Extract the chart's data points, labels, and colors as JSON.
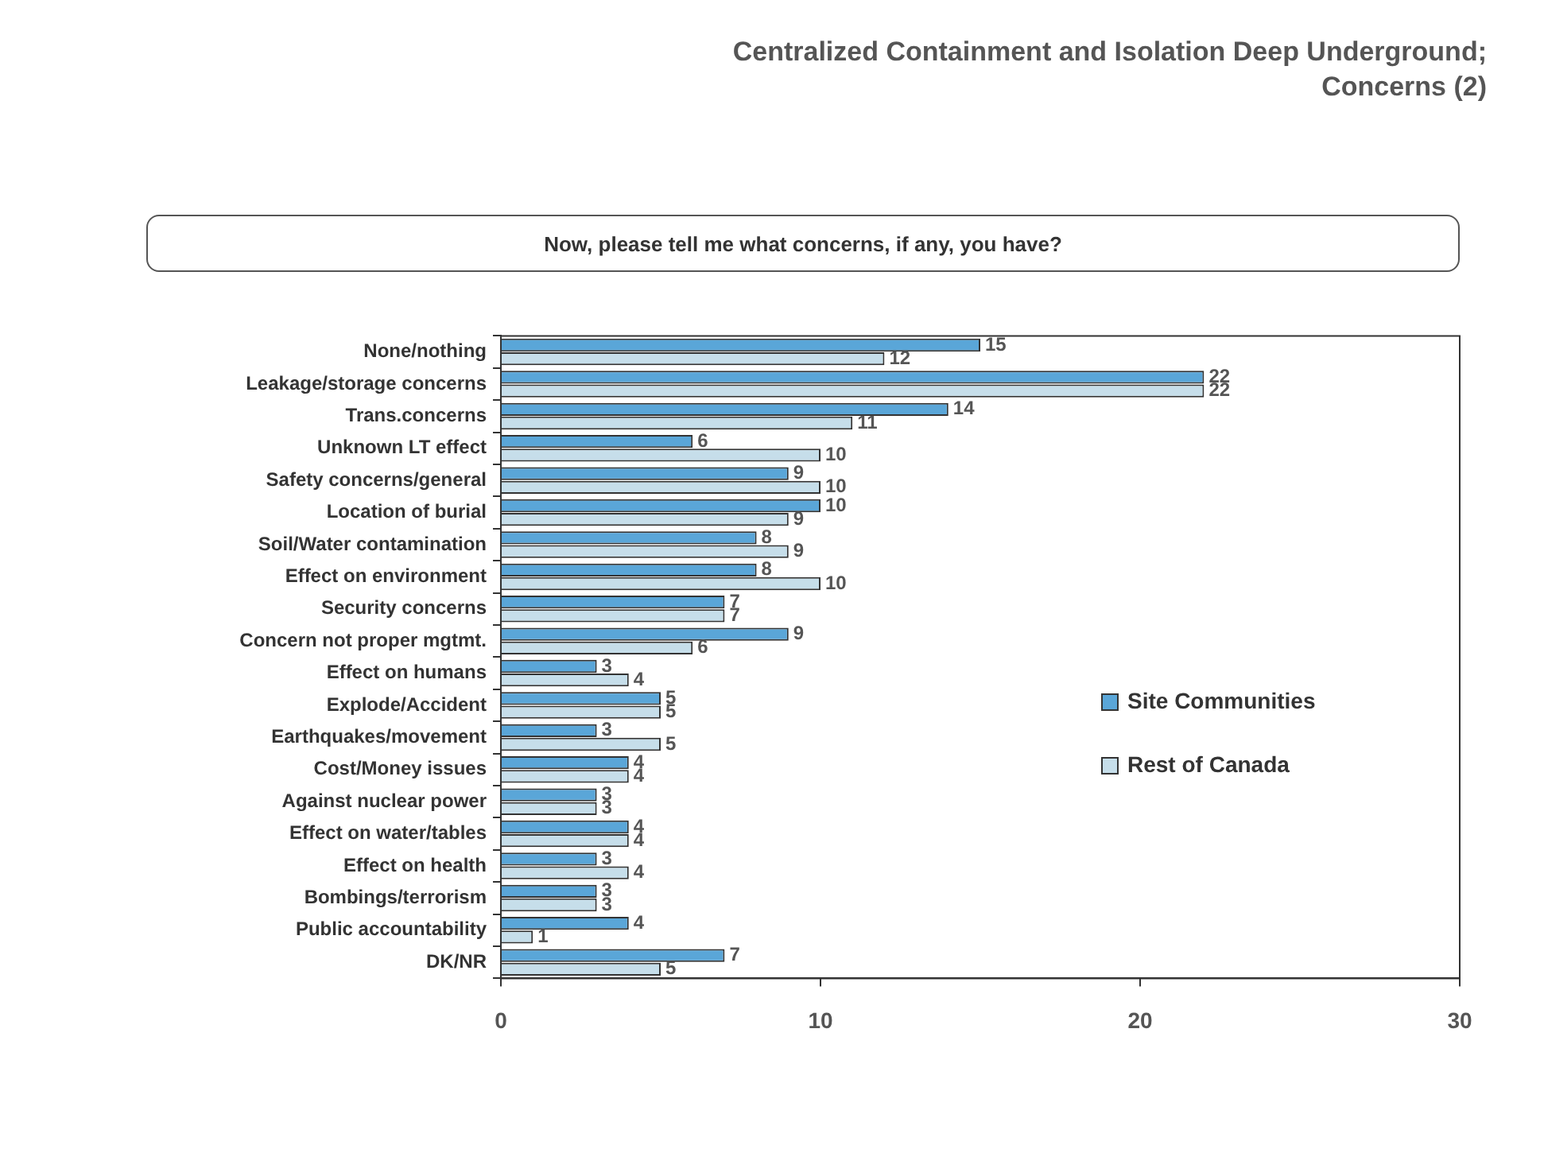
{
  "chart_data": {
    "type": "bar",
    "orientation": "horizontal",
    "title": "Centralized Containment and Isolation Deep Underground; Concerns (2)",
    "subtitle": "Now, please tell me what concerns, if any, you have?",
    "categories": [
      "None/nothing",
      "Leakage/storage concerns",
      "Trans.concerns",
      "Unknown LT effect",
      "Safety concerns/general",
      "Location of burial",
      "Soil/Water contamination",
      "Effect on environment",
      "Security concerns",
      "Concern not proper mgtmt.",
      "Effect on humans",
      "Explode/Accident",
      "Earthquakes/movement",
      "Cost/Money issues",
      "Against nuclear power",
      "Effect on water/tables",
      "Effect on health",
      "Bombings/terrorism",
      "Public accountability",
      "DK/NR"
    ],
    "series": [
      {
        "name": "Site Communities",
        "color": "#5aa6d8",
        "values": [
          15,
          22,
          14,
          6,
          9,
          10,
          8,
          8,
          7,
          9,
          3,
          5,
          3,
          4,
          3,
          4,
          3,
          3,
          4,
          7
        ]
      },
      {
        "name": "Rest of Canada",
        "color": "#c6deea",
        "values": [
          12,
          22,
          11,
          10,
          10,
          9,
          9,
          10,
          7,
          6,
          4,
          5,
          5,
          4,
          3,
          4,
          4,
          3,
          1,
          5
        ]
      }
    ],
    "xlim": [
      0,
      30
    ],
    "xticks": [
      0,
      10,
      20,
      30
    ],
    "grid": false,
    "legend": "right",
    "data_labels": true
  }
}
